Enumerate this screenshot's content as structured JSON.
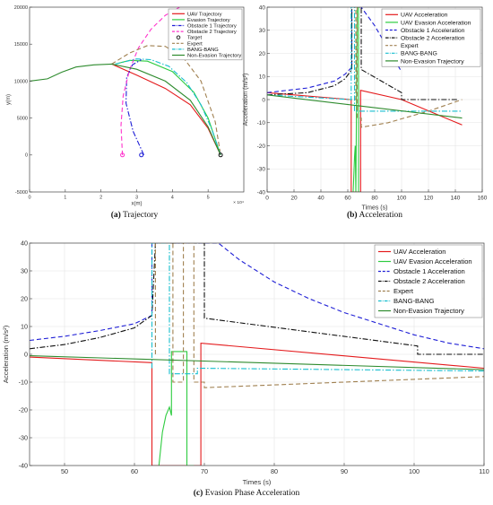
{
  "chart_data": [
    {
      "type": "line",
      "panel": "a",
      "caption_label": "(a)",
      "caption_text": "Trajectory",
      "xlabel": "x(m)",
      "ylabel": "y(m)",
      "x_exponent": "× 10⁴",
      "xlim": [
        0,
        60000
      ],
      "ylim": [
        -5000,
        20000
      ],
      "xticks": [
        0,
        10000,
        20000,
        30000,
        40000,
        50000
      ],
      "xtick_labels": [
        "0",
        "1",
        "2",
        "3",
        "4",
        "5"
      ],
      "yticks": [
        -5000,
        0,
        5000,
        10000,
        15000,
        20000
      ],
      "ytick_labels": [
        "-5000",
        "0",
        "5000",
        "10000",
        "15000",
        "20000"
      ],
      "legend_position": "top-right",
      "series": [
        {
          "name": "UAV Trajectory",
          "color": "#e41a1c",
          "dash": "solid",
          "x": [
            23000,
            30000,
            38000,
            45000,
            50000,
            53500
          ],
          "y": [
            12300,
            10800,
            9000,
            6800,
            3600,
            0
          ]
        },
        {
          "name": "Evasion Trajectory",
          "color": "#2ecc40",
          "dash": "solid",
          "x": [
            24000,
            28000,
            33000,
            40000,
            46000,
            50000,
            53500
          ],
          "y": [
            12300,
            12800,
            12700,
            11300,
            8500,
            5000,
            0
          ]
        },
        {
          "name": "Obstacle 1 Trajectory",
          "color": "#1f1fd6",
          "dash": "dashdot",
          "x": [
            32000,
            29000,
            27000,
            27200,
            28800,
            31300
          ],
          "y": [
            0,
            3200,
            7000,
            10500,
            12200,
            12900
          ]
        },
        {
          "name": "Obstacle 2 Trajectory",
          "color": "#ff33cc",
          "dash": "dash",
          "x": [
            26000,
            25600,
            26200,
            28000,
            30500,
            34000,
            38000,
            42000
          ],
          "y": [
            0,
            4000,
            8000,
            11500,
            14500,
            17000,
            18900,
            20000
          ]
        },
        {
          "name": "Expert",
          "color": "#a08050",
          "dash": "dash",
          "x": [
            23000,
            28000,
            33000,
            38000,
            43000,
            48000,
            52000,
            53500
          ],
          "y": [
            12300,
            13800,
            14800,
            14700,
            13200,
            10000,
            4500,
            0
          ]
        },
        {
          "name": "BANG-BANG",
          "color": "#17becf",
          "dash": "dashdot",
          "x": [
            24000,
            30000,
            34000,
            39000,
            44000,
            48000,
            51000,
            53500
          ],
          "y": [
            12300,
            13000,
            12900,
            12000,
            9800,
            6800,
            3500,
            0
          ]
        },
        {
          "name": "Non-Evasion Trajectory",
          "color": "#2e8b2e",
          "dash": "solid",
          "x": [
            0,
            5000,
            9000,
            13000,
            18000,
            23000,
            30000,
            38000,
            45000,
            50000,
            53500
          ],
          "y": [
            10000,
            10300,
            11200,
            11900,
            12200,
            12300,
            11600,
            10000,
            7400,
            3800,
            0
          ]
        }
      ],
      "markers": [
        {
          "name": "Target",
          "marker": "circle",
          "points": [
            {
              "x": 53500,
              "y": 0,
              "color": "#111111"
            },
            {
              "x": 31300,
              "y": 0,
              "color": "#1f1fd6"
            },
            {
              "x": 26000,
              "y": 0,
              "color": "#ff33cc"
            }
          ]
        }
      ]
    },
    {
      "type": "line",
      "panel": "b",
      "caption_label": "(b)",
      "caption_text": "Acceleration",
      "xlabel": "Times (s)",
      "ylabel": "Acceleration (m/s²)",
      "xlim": [
        0,
        160
      ],
      "ylim": [
        -40,
        40
      ],
      "xticks": [
        0,
        20,
        40,
        60,
        80,
        100,
        120,
        140,
        160
      ],
      "xtick_labels": [
        "0",
        "20",
        "40",
        "60",
        "80",
        "100",
        "120",
        "140",
        "160"
      ],
      "yticks": [
        -40,
        -30,
        -20,
        -10,
        0,
        10,
        20,
        30,
        40
      ],
      "ytick_labels": [
        "-40",
        "-30",
        "-20",
        "-10",
        "0",
        "10",
        "20",
        "30",
        "40"
      ],
      "grid": true,
      "legend_position": "top-right",
      "series": [
        {
          "name": "UAV Acceleration",
          "color": "#e41a1c",
          "dash": "solid",
          "x": [
            0,
            62,
            62.5,
            62.5,
            69.5,
            69.5,
            100,
            145
          ],
          "y": [
            3,
            0,
            0,
            -40,
            -40,
            4,
            0,
            -11
          ]
        },
        {
          "name": "UAV Evasion Acceleration",
          "color": "#2ecc40",
          "dash": "solid",
          "x": [
            64,
            65,
            65.5,
            66,
            67,
            68,
            68,
            69
          ],
          "y": [
            -40,
            -25,
            -20,
            -40,
            40,
            40,
            -40,
            -40
          ]
        },
        {
          "name": "Obstacle 1 Acceleration",
          "color": "#1f1fd6",
          "dash": "dash",
          "x": [
            0,
            30,
            50,
            58,
            63,
            63,
            70,
            80,
            90,
            100
          ],
          "y": [
            3,
            5,
            8,
            11,
            14,
            40,
            40,
            32,
            22,
            12
          ]
        },
        {
          "name": "Obstacle 2 Acceleration",
          "color": "#111111",
          "dash": "dashdot",
          "x": [
            0,
            30,
            50,
            58,
            63,
            63,
            70,
            70,
            100,
            100,
            142
          ],
          "y": [
            2,
            3,
            6,
            9,
            13,
            40,
            40,
            13,
            3,
            0,
            0
          ]
        },
        {
          "name": "Expert",
          "color": "#a08050",
          "dash": "dash",
          "x": [
            60,
            66,
            66,
            67,
            67,
            70,
            70,
            90,
            120,
            145
          ],
          "y": [
            0,
            0,
            40,
            40,
            -8,
            -8,
            -12,
            -10,
            -5,
            0
          ]
        },
        {
          "name": "BANG-BANG",
          "color": "#17becf",
          "dash": "dashdot",
          "x": [
            0,
            62.5,
            62.5,
            65,
            65,
            69,
            69,
            145
          ],
          "y": [
            2,
            0,
            40,
            40,
            -5,
            -5,
            -5,
            -5
          ]
        },
        {
          "name": "Non-Evasion Trajectory",
          "color": "#2e8b2e",
          "dash": "solid",
          "x": [
            0,
            145
          ],
          "y": [
            2,
            -8
          ]
        }
      ]
    },
    {
      "type": "line",
      "panel": "c",
      "caption_label": "(c)",
      "caption_text": "Evasion Phase Acceleration",
      "xlabel": "Times (s)",
      "ylabel": "Acceleration (m/s²)",
      "xlim": [
        45,
        110
      ],
      "ylim": [
        -40,
        40
      ],
      "xticks": [
        50,
        60,
        70,
        80,
        90,
        100,
        110
      ],
      "xtick_labels": [
        "50",
        "60",
        "70",
        "80",
        "90",
        "100",
        "110"
      ],
      "yticks": [
        -40,
        -30,
        -20,
        -10,
        0,
        10,
        20,
        30,
        40
      ],
      "ytick_labels": [
        "-40",
        "-30",
        "-20",
        "-10",
        "0",
        "10",
        "20",
        "30",
        "40"
      ],
      "grid": true,
      "legend_position": "top-right",
      "series": [
        {
          "name": "UAV Acceleration",
          "color": "#e41a1c",
          "dash": "solid",
          "x": [
            45,
            62.5,
            62.5,
            69.5,
            69.5,
            110
          ],
          "y": [
            -1,
            -3,
            -40,
            -40,
            4,
            -5
          ]
        },
        {
          "name": "UAV Evasion Acceleration",
          "color": "#2ecc40",
          "dash": "solid",
          "x": [
            63.5,
            64,
            64.5,
            65,
            65.3,
            65.3,
            67.5,
            67.5,
            68.5
          ],
          "y": [
            -40,
            -28,
            -22,
            -19,
            -22,
            1,
            1,
            -40,
            -40
          ]
        },
        {
          "name": "Obstacle 1 Acceleration",
          "color": "#1f1fd6",
          "dash": "dash",
          "x": [
            45,
            50,
            55,
            60,
            62.5,
            62.5,
            72,
            75,
            80,
            85,
            90,
            95,
            100,
            105,
            110
          ],
          "y": [
            5,
            6.5,
            8.5,
            11,
            14,
            40,
            40,
            34,
            26,
            20,
            15,
            11,
            7,
            4,
            2
          ]
        },
        {
          "name": "Obstacle 2 Acceleration",
          "color": "#111111",
          "dash": "dashdot",
          "x": [
            45,
            50,
            55,
            60,
            62.5,
            63,
            63,
            70,
            70,
            100.5,
            100.5,
            110
          ],
          "y": [
            2,
            3.5,
            6,
            9.5,
            14,
            40,
            40,
            40,
            13,
            3,
            0,
            0
          ]
        },
        {
          "name": "Expert",
          "color": "#a08050",
          "dash": "dash",
          "x": [
            63,
            63,
            65.5,
            65.5,
            67,
            67,
            68.5,
            68.5,
            70,
            70,
            80,
            90,
            100,
            110
          ],
          "y": [
            0,
            40,
            40,
            -10,
            -10,
            40,
            40,
            -10,
            -10,
            -12,
            -11,
            -10,
            -9,
            -8
          ]
        },
        {
          "name": "BANG-BANG",
          "color": "#17becf",
          "dash": "dashdot",
          "x": [
            62.5,
            62.5,
            65,
            65,
            69,
            69,
            110
          ],
          "y": [
            -5,
            40,
            40,
            -7,
            -7,
            -5,
            -6
          ]
        },
        {
          "name": "Non-Evasion Trajectory",
          "color": "#2e8b2e",
          "dash": "solid",
          "x": [
            45,
            110
          ],
          "y": [
            -0.5,
            -5.5
          ]
        }
      ]
    }
  ]
}
